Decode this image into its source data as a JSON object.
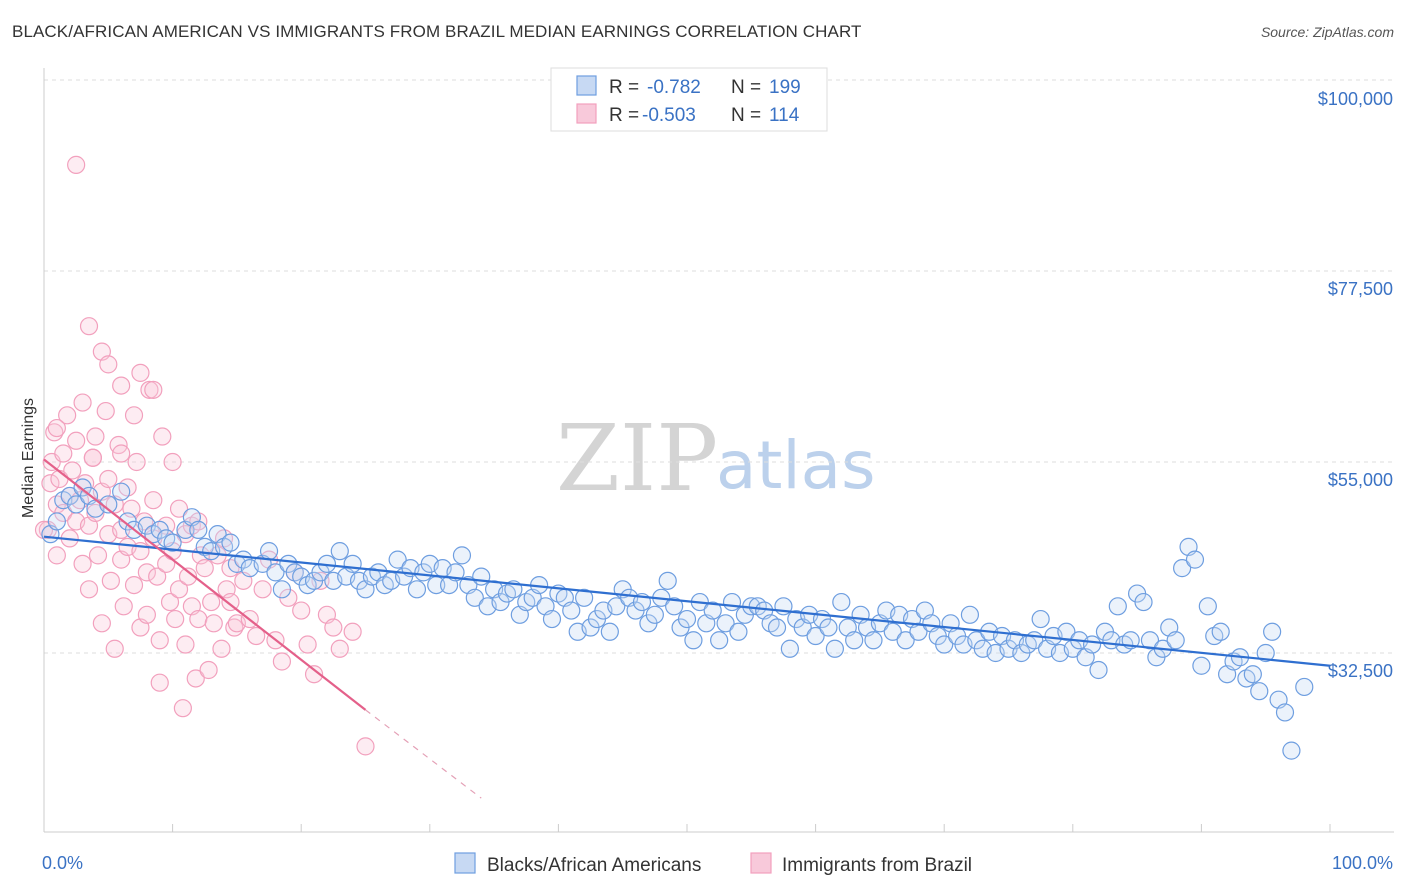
{
  "title": "BLACK/AFRICAN AMERICAN VS IMMIGRANTS FROM BRAZIL MEDIAN EARNINGS CORRELATION CHART",
  "source": "Source: ZipAtlas.com",
  "watermark": {
    "zip": "ZIP",
    "atlas": "atlas"
  },
  "colors": {
    "blue": "#6e9ee0",
    "blue_line": "#2f6fd0",
    "pink": "#f2a0bd",
    "pink_line": "#e4608a",
    "accent_text": "#3a72c4"
  },
  "legend": {
    "r_label": "R =",
    "n_label": "N =",
    "items": [
      {
        "r": "-0.782",
        "n": "199"
      },
      {
        "r": "-0.503",
        "n": "114"
      }
    ]
  },
  "chart_data": {
    "type": "scatter",
    "title": "BLACK/AFRICAN AMERICAN VS IMMIGRANTS FROM BRAZIL MEDIAN EARNINGS CORRELATION CHART",
    "xlabel": "",
    "ylabel": "Median Earnings",
    "xlim": [
      0,
      100
    ],
    "ylim": [
      12000,
      102000
    ],
    "x_tick_labels": [
      "0.0%",
      "100.0%"
    ],
    "y_ticks": [
      32500,
      55000,
      77500,
      100000
    ],
    "y_tick_labels": [
      "$32,500",
      "$55,000",
      "$77,500",
      "$100,000"
    ],
    "series": [
      {
        "name": "Blacks/African Americans",
        "r": -0.782,
        "n": 199,
        "trend": {
          "x0": 0,
          "y0": 46200,
          "x1": 100,
          "y1": 31000
        },
        "points": [
          [
            0.5,
            46.5
          ],
          [
            1.0,
            48.0
          ],
          [
            1.5,
            50.5
          ],
          [
            2.0,
            51.0
          ],
          [
            2.5,
            50.0
          ],
          [
            3.0,
            52.0
          ],
          [
            3.5,
            51.0
          ],
          [
            4.0,
            49.5
          ],
          [
            5.0,
            50.0
          ],
          [
            6.0,
            51.5
          ],
          [
            6.5,
            48.0
          ],
          [
            7.0,
            47.0
          ],
          [
            8.0,
            47.5
          ],
          [
            8.5,
            46.5
          ],
          [
            9.0,
            47.0
          ],
          [
            9.5,
            46.0
          ],
          [
            10.0,
            45.5
          ],
          [
            11.0,
            47.0
          ],
          [
            11.5,
            48.5
          ],
          [
            12.0,
            47.0
          ],
          [
            12.5,
            45.0
          ],
          [
            13.0,
            44.5
          ],
          [
            13.5,
            46.5
          ],
          [
            14.0,
            45.0
          ],
          [
            14.5,
            45.5
          ],
          [
            15.0,
            43.0
          ],
          [
            15.5,
            43.5
          ],
          [
            16.0,
            42.5
          ],
          [
            17.0,
            43.0
          ],
          [
            17.5,
            44.5
          ],
          [
            18.0,
            42.0
          ],
          [
            18.5,
            40.0
          ],
          [
            19.0,
            43.0
          ],
          [
            19.5,
            42.0
          ],
          [
            20.0,
            41.5
          ],
          [
            20.5,
            40.5
          ],
          [
            21.0,
            41.0
          ],
          [
            21.5,
            42.0
          ],
          [
            22.0,
            43.0
          ],
          [
            22.5,
            41.0
          ],
          [
            23.0,
            44.5
          ],
          [
            23.5,
            41.5
          ],
          [
            24.0,
            43.0
          ],
          [
            24.5,
            41.0
          ],
          [
            25.0,
            40.0
          ],
          [
            25.5,
            41.5
          ],
          [
            26.0,
            42.0
          ],
          [
            26.5,
            40.5
          ],
          [
            27.0,
            41.0
          ],
          [
            27.5,
            43.5
          ],
          [
            28.0,
            41.5
          ],
          [
            28.5,
            42.5
          ],
          [
            29.0,
            40.0
          ],
          [
            29.5,
            42.0
          ],
          [
            30.0,
            43.0
          ],
          [
            30.5,
            40.5
          ],
          [
            31.0,
            42.5
          ],
          [
            31.5,
            40.5
          ],
          [
            32.0,
            42.0
          ],
          [
            32.5,
            44.0
          ],
          [
            33.0,
            40.5
          ],
          [
            33.5,
            39.0
          ],
          [
            34.0,
            41.5
          ],
          [
            34.5,
            38.0
          ],
          [
            35.0,
            40.0
          ],
          [
            35.5,
            38.5
          ],
          [
            36.0,
            39.5
          ],
          [
            36.5,
            40.0
          ],
          [
            37.0,
            37.0
          ],
          [
            37.5,
            38.5
          ],
          [
            38.0,
            39.0
          ],
          [
            38.5,
            40.5
          ],
          [
            39.0,
            38.0
          ],
          [
            39.5,
            36.5
          ],
          [
            40.0,
            39.5
          ],
          [
            40.5,
            39.0
          ],
          [
            41.0,
            37.5
          ],
          [
            41.5,
            35.0
          ],
          [
            42.0,
            39.0
          ],
          [
            42.5,
            35.5
          ],
          [
            43.0,
            36.5
          ],
          [
            43.5,
            37.5
          ],
          [
            44.0,
            35.0
          ],
          [
            44.5,
            38.0
          ],
          [
            45.0,
            40.0
          ],
          [
            45.5,
            39.0
          ],
          [
            46.0,
            37.5
          ],
          [
            46.5,
            38.5
          ],
          [
            47.0,
            36.0
          ],
          [
            47.5,
            37.0
          ],
          [
            48.0,
            39.0
          ],
          [
            48.5,
            41.0
          ],
          [
            49.0,
            38.0
          ],
          [
            49.5,
            35.5
          ],
          [
            50.0,
            36.5
          ],
          [
            50.5,
            34.0
          ],
          [
            51.0,
            38.5
          ],
          [
            51.5,
            36.0
          ],
          [
            52.0,
            37.5
          ],
          [
            52.5,
            34.0
          ],
          [
            53.0,
            36.0
          ],
          [
            53.5,
            38.5
          ],
          [
            54.0,
            35.0
          ],
          [
            54.5,
            37.0
          ],
          [
            55.0,
            38.0
          ],
          [
            55.5,
            38.0
          ],
          [
            56.0,
            37.5
          ],
          [
            56.5,
            36.0
          ],
          [
            57.0,
            35.5
          ],
          [
            57.5,
            38.0
          ],
          [
            58.0,
            33.0
          ],
          [
            58.5,
            36.5
          ],
          [
            59.0,
            35.5
          ],
          [
            59.5,
            37.0
          ],
          [
            60.0,
            34.5
          ],
          [
            60.5,
            36.5
          ],
          [
            61.0,
            35.5
          ],
          [
            61.5,
            33.0
          ],
          [
            62.0,
            38.5
          ],
          [
            62.5,
            35.5
          ],
          [
            63.0,
            34.0
          ],
          [
            63.5,
            37.0
          ],
          [
            64.0,
            35.5
          ],
          [
            64.5,
            34.0
          ],
          [
            65.0,
            36.0
          ],
          [
            65.5,
            37.5
          ],
          [
            66.0,
            35.0
          ],
          [
            66.5,
            37.0
          ],
          [
            67.0,
            34.0
          ],
          [
            67.5,
            36.5
          ],
          [
            68.0,
            35.0
          ],
          [
            68.5,
            37.5
          ],
          [
            69.0,
            36.0
          ],
          [
            69.5,
            34.5
          ],
          [
            70.0,
            33.5
          ],
          [
            70.5,
            36.0
          ],
          [
            71.0,
            34.5
          ],
          [
            71.5,
            33.5
          ],
          [
            72.0,
            37.0
          ],
          [
            72.5,
            34.0
          ],
          [
            73.0,
            33.0
          ],
          [
            73.5,
            35.0
          ],
          [
            74.0,
            32.5
          ],
          [
            74.5,
            34.5
          ],
          [
            75.0,
            33.0
          ],
          [
            75.5,
            34.0
          ],
          [
            76.0,
            32.5
          ],
          [
            76.5,
            33.5
          ],
          [
            77.0,
            34.0
          ],
          [
            77.5,
            36.5
          ],
          [
            78.0,
            33.0
          ],
          [
            78.5,
            34.5
          ],
          [
            79.0,
            32.5
          ],
          [
            79.5,
            35.0
          ],
          [
            80.0,
            33.0
          ],
          [
            80.5,
            34.0
          ],
          [
            81.0,
            32.0
          ],
          [
            81.5,
            33.5
          ],
          [
            82.0,
            30.5
          ],
          [
            82.5,
            35.0
          ],
          [
            83.0,
            34.0
          ],
          [
            83.5,
            38.0
          ],
          [
            84.0,
            33.5
          ],
          [
            84.5,
            34.0
          ],
          [
            85.0,
            39.5
          ],
          [
            85.5,
            38.5
          ],
          [
            86.0,
            34.0
          ],
          [
            86.5,
            32.0
          ],
          [
            87.0,
            33.0
          ],
          [
            87.5,
            35.5
          ],
          [
            88.0,
            34.0
          ],
          [
            88.5,
            42.5
          ],
          [
            89.0,
            45.0
          ],
          [
            89.5,
            43.5
          ],
          [
            90.0,
            31.0
          ],
          [
            90.5,
            38.0
          ],
          [
            91.0,
            34.5
          ],
          [
            91.5,
            35.0
          ],
          [
            92.0,
            30.0
          ],
          [
            92.5,
            31.5
          ],
          [
            93.0,
            32.0
          ],
          [
            93.5,
            29.5
          ],
          [
            94.0,
            30.0
          ],
          [
            94.5,
            28.0
          ],
          [
            95.0,
            32.5
          ],
          [
            95.5,
            35.0
          ],
          [
            96.0,
            27.0
          ],
          [
            96.5,
            25.5
          ],
          [
            97.0,
            21.0
          ],
          [
            98.0,
            28.5
          ]
        ]
      },
      {
        "name": "Immigrants from Brazil",
        "r": -0.503,
        "n": 114,
        "trend": {
          "x0": 0,
          "y0": 55300,
          "x1": 25,
          "y1": 25800
        },
        "trend_dashed": {
          "x0": 25,
          "y0": 25800,
          "x1": 34,
          "y1": 15400
        },
        "points": [
          [
            0.3,
            47.0
          ],
          [
            0.5,
            52.5
          ],
          [
            0.6,
            55.0
          ],
          [
            0.8,
            58.5
          ],
          [
            1.0,
            50.0
          ],
          [
            1.0,
            44.0
          ],
          [
            1.2,
            53.0
          ],
          [
            1.5,
            49.0
          ],
          [
            1.5,
            56.0
          ],
          [
            1.8,
            60.5
          ],
          [
            2.0,
            51.0
          ],
          [
            2.0,
            46.0
          ],
          [
            2.2,
            54.0
          ],
          [
            2.5,
            48.0
          ],
          [
            2.5,
            57.5
          ],
          [
            2.8,
            50.5
          ],
          [
            3.0,
            43.0
          ],
          [
            3.0,
            62.0
          ],
          [
            3.2,
            52.5
          ],
          [
            3.5,
            47.5
          ],
          [
            3.5,
            40.0
          ],
          [
            3.8,
            55.5
          ],
          [
            4.0,
            49.0
          ],
          [
            4.0,
            58.0
          ],
          [
            4.2,
            44.0
          ],
          [
            4.5,
            51.5
          ],
          [
            4.5,
            36.0
          ],
          [
            4.8,
            61.0
          ],
          [
            5.0,
            46.5
          ],
          [
            5.0,
            53.0
          ],
          [
            5.2,
            41.0
          ],
          [
            5.5,
            50.0
          ],
          [
            5.5,
            33.0
          ],
          [
            5.8,
            57.0
          ],
          [
            6.0,
            47.0
          ],
          [
            6.0,
            43.5
          ],
          [
            6.2,
            38.0
          ],
          [
            6.5,
            52.0
          ],
          [
            6.5,
            45.0
          ],
          [
            6.8,
            49.5
          ],
          [
            7.0,
            40.5
          ],
          [
            7.0,
            60.5
          ],
          [
            7.2,
            55.0
          ],
          [
            7.5,
            44.5
          ],
          [
            7.5,
            35.5
          ],
          [
            7.8,
            48.0
          ],
          [
            8.0,
            42.0
          ],
          [
            8.0,
            37.0
          ],
          [
            8.2,
            63.5
          ],
          [
            8.5,
            50.5
          ],
          [
            8.5,
            46.0
          ],
          [
            8.8,
            41.5
          ],
          [
            9.0,
            34.0
          ],
          [
            9.0,
            29.0
          ],
          [
            9.2,
            58.0
          ],
          [
            9.5,
            47.5
          ],
          [
            9.5,
            43.0
          ],
          [
            9.8,
            38.5
          ],
          [
            10.0,
            55.0
          ],
          [
            10.0,
            44.5
          ],
          [
            10.2,
            36.5
          ],
          [
            10.5,
            49.5
          ],
          [
            10.5,
            40.0
          ],
          [
            10.8,
            26.0
          ],
          [
            11.0,
            46.5
          ],
          [
            11.0,
            33.5
          ],
          [
            11.2,
            41.5
          ],
          [
            11.5,
            47.5
          ],
          [
            11.5,
            38.0
          ],
          [
            11.8,
            29.5
          ],
          [
            12.0,
            36.5
          ],
          [
            12.2,
            44.0
          ],
          [
            12.5,
            42.5
          ],
          [
            12.8,
            30.5
          ],
          [
            13.0,
            38.5
          ],
          [
            13.2,
            36.0
          ],
          [
            13.5,
            44.0
          ],
          [
            13.8,
            33.0
          ],
          [
            14.0,
            46.0
          ],
          [
            14.2,
            40.0
          ],
          [
            14.5,
            38.5
          ],
          [
            14.8,
            35.5
          ],
          [
            15.0,
            36.0
          ],
          [
            15.5,
            41.0
          ],
          [
            16.0,
            36.5
          ],
          [
            16.5,
            34.5
          ],
          [
            17.0,
            40.0
          ],
          [
            17.5,
            43.5
          ],
          [
            18.0,
            34.0
          ],
          [
            18.5,
            31.5
          ],
          [
            19.0,
            39.0
          ],
          [
            19.5,
            42.0
          ],
          [
            20.0,
            37.5
          ],
          [
            20.5,
            33.5
          ],
          [
            21.0,
            30.0
          ],
          [
            21.5,
            41.0
          ],
          [
            22.0,
            37.0
          ],
          [
            22.5,
            35.5
          ],
          [
            23.0,
            33.0
          ],
          [
            24.0,
            35.0
          ],
          [
            25.0,
            21.5
          ],
          [
            2.5,
            90.0
          ],
          [
            3.5,
            71.0
          ],
          [
            4.5,
            68.0
          ],
          [
            5.0,
            66.5
          ],
          [
            6.0,
            64.0
          ],
          [
            7.5,
            65.5
          ],
          [
            8.5,
            63.5
          ],
          [
            1.0,
            59.0
          ],
          [
            6.0,
            56.0
          ],
          [
            12.0,
            48.0
          ],
          [
            14.5,
            42.5
          ],
          [
            3.8,
            55.5
          ],
          [
            0.0,
            47.0
          ]
        ]
      }
    ]
  },
  "bottom_legend": [
    "Blacks/African Americans",
    "Immigrants from Brazil"
  ]
}
